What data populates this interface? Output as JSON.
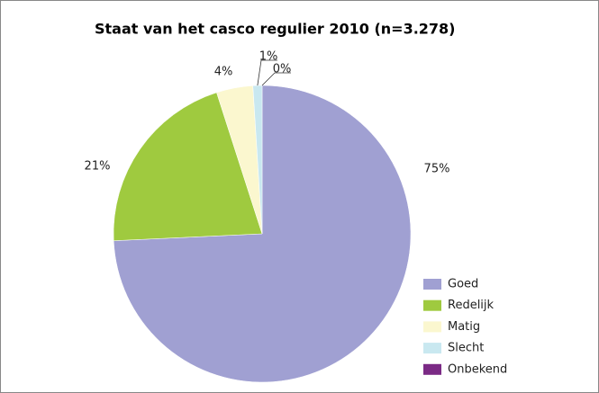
{
  "chart_data": {
    "type": "pie",
    "title": "Staat van het casco regulier 2010 (n=3.278)",
    "categories": [
      "Goed",
      "Redelijk",
      "Matig",
      "Slecht",
      "Onbekend"
    ],
    "values": [
      75,
      21,
      4,
      1,
      0
    ],
    "value_labels": [
      "75%",
      "21%",
      "4%",
      "1%",
      "0%"
    ],
    "colors": [
      "#a0a0d2",
      "#9fca3f",
      "#fbf7cf",
      "#c9e8f0",
      "#7b2a85"
    ],
    "legend": "lower right"
  }
}
